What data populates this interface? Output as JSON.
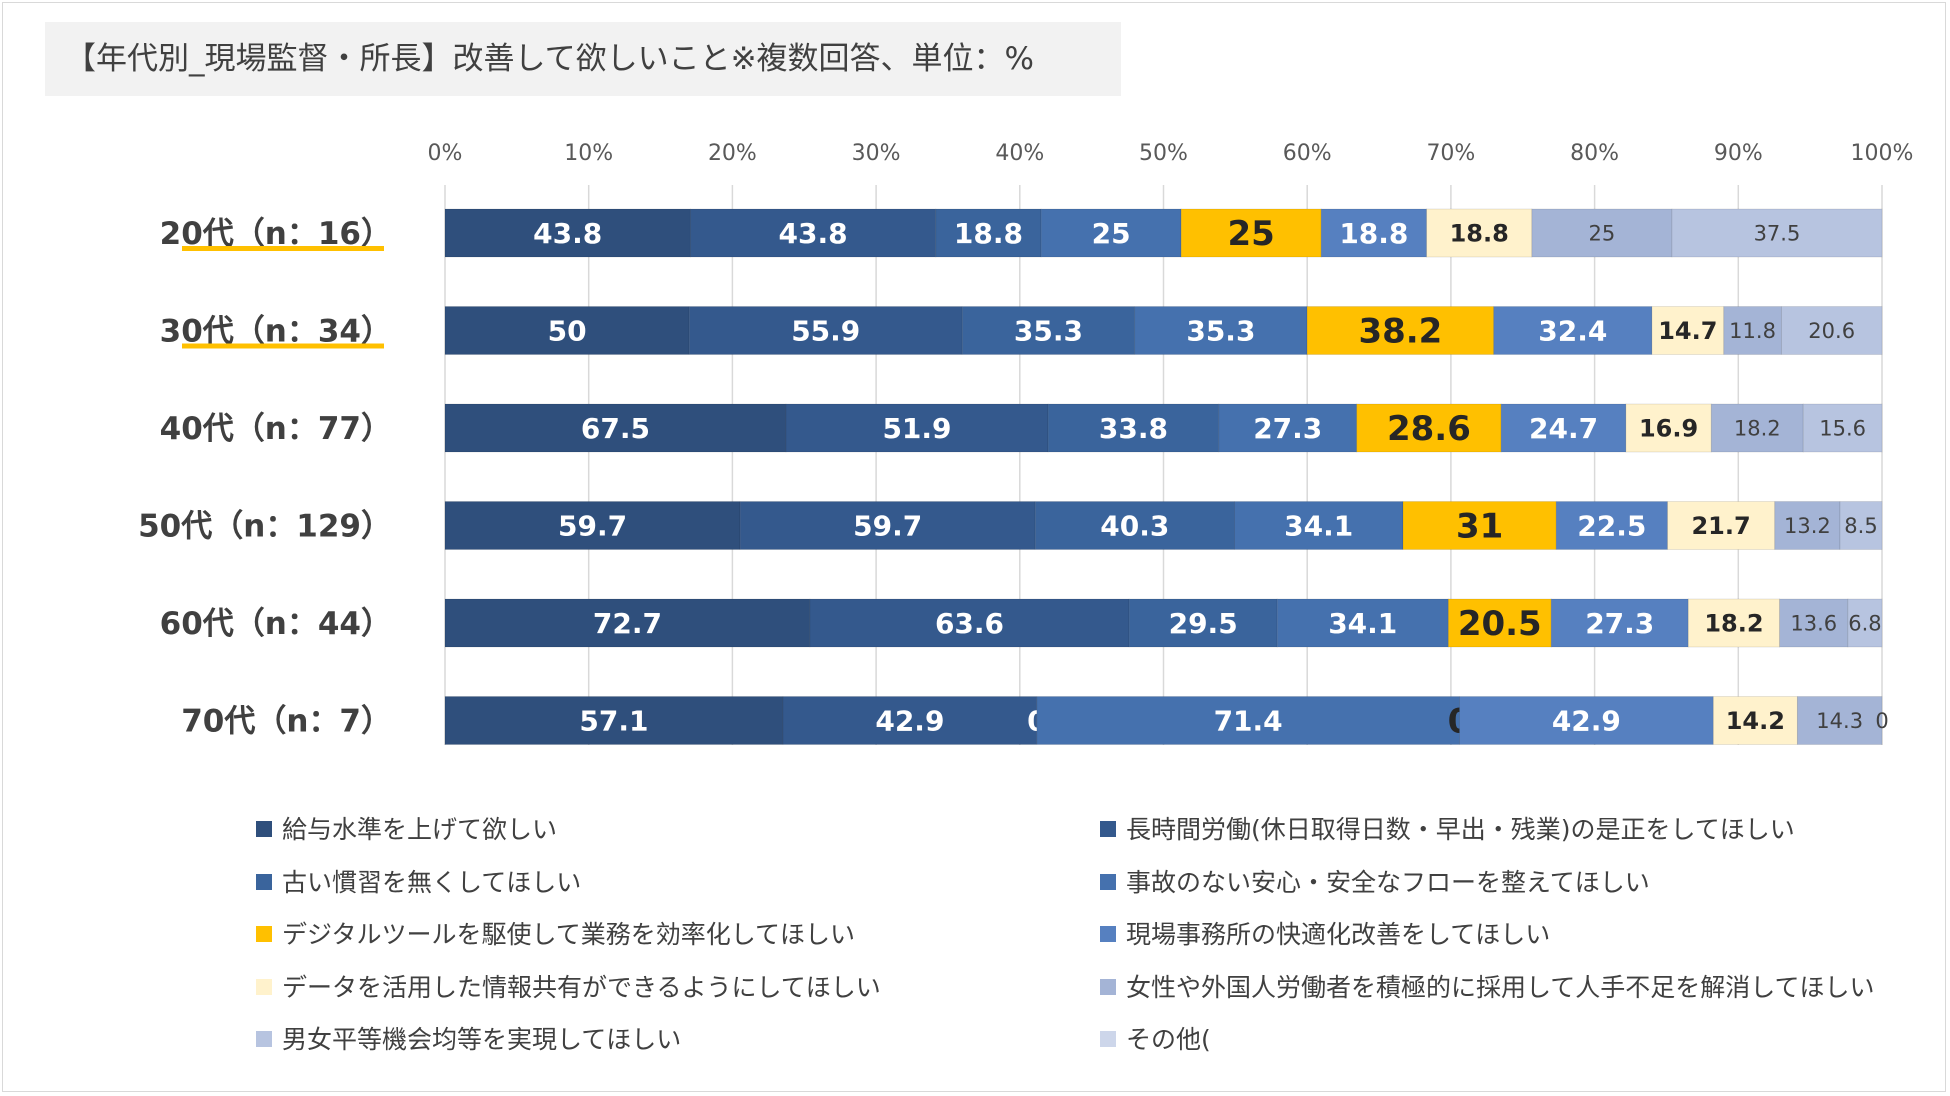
{
  "chart_data": {
    "type": "bar",
    "orientation": "horizontal",
    "stacked": "percent",
    "title": "【年代別_現場監督・所長】改善して欲しいこと※複数回答、単位：%",
    "x_axis": {
      "ticks": [
        "0%",
        "10%",
        "20%",
        "30%",
        "40%",
        "50%",
        "60%",
        "70%",
        "80%",
        "90%",
        "100%"
      ],
      "range": [
        0,
        100
      ],
      "gridlines": true
    },
    "categories": [
      "20代（n：16）",
      "30代（n：34）",
      "40代（n：77）",
      "50代（n：129）",
      "60代（n：44）",
      "70代（n：7）"
    ],
    "highlighted_categories": [
      "20代（n：16）",
      "30代（n：34）"
    ],
    "highlight_color": "#FFC000",
    "series": [
      {
        "name": "給与水準を上げて欲しい",
        "color": "#2F4F7C",
        "label_color": "#FFFFFF",
        "label_size": "large",
        "values": [
          43.8,
          50,
          67.5,
          59.7,
          72.7,
          57.1
        ]
      },
      {
        "name": "長時間労働(休日取得日数・早出・残業)の是正をしてほしい",
        "color": "#34598D",
        "label_color": "#FFFFFF",
        "label_size": "large",
        "values": [
          43.8,
          55.9,
          51.9,
          59.7,
          63.6,
          42.9
        ]
      },
      {
        "name": "古い慣習を無くしてほしい",
        "color": "#3A649C",
        "label_color": "#FFFFFF",
        "label_size": "large",
        "values": [
          18.8,
          35.3,
          33.8,
          40.3,
          29.5,
          0
        ]
      },
      {
        "name": "事故のない安心・安全なフローを整えてほしい",
        "color": "#4571AE",
        "label_color": "#FFFFFF",
        "label_size": "large",
        "values": [
          25,
          35.3,
          27.3,
          34.1,
          34.1,
          71.4
        ]
      },
      {
        "name": "デジタルツールを駆使して業務を効率化してほしい",
        "color": "#FFC000",
        "label_color": "#262626",
        "label_size": "xlarge",
        "values": [
          25,
          38.2,
          28.6,
          31,
          20.5,
          0
        ]
      },
      {
        "name": "現場事務所の快適化改善をしてほしい",
        "color": "#5680C0",
        "label_color": "#FFFFFF",
        "label_size": "large",
        "values": [
          18.8,
          32.4,
          24.7,
          22.5,
          27.3,
          42.9
        ]
      },
      {
        "name": "データを活用した情報共有ができるようにしてほしい",
        "color": "#FFF2CC",
        "label_color": "#262626",
        "label_size": "medium",
        "values": [
          18.8,
          14.7,
          16.9,
          21.7,
          18.2,
          14.2
        ]
      },
      {
        "name": "女性や外国人労働者を積極的に採用して人手不足を解消してほしい",
        "color": "#A4B4D6",
        "label_color": "#404040",
        "label_size": "small",
        "values": [
          25,
          11.8,
          18.2,
          13.2,
          13.6,
          14.3
        ]
      },
      {
        "name": "男女平等機会均等を実現してほしい",
        "color": "#B7C4E0",
        "label_color": "#404040",
        "label_size": "small",
        "values": [
          37.5,
          20.6,
          15.6,
          8.5,
          6.8,
          0
        ]
      },
      {
        "name": "その他(",
        "color": "#CDD6EA",
        "label_color": "#404040",
        "label_size": "small",
        "values": [
          0,
          0,
          0,
          0,
          0,
          0
        ],
        "show_labels": false
      }
    ]
  }
}
